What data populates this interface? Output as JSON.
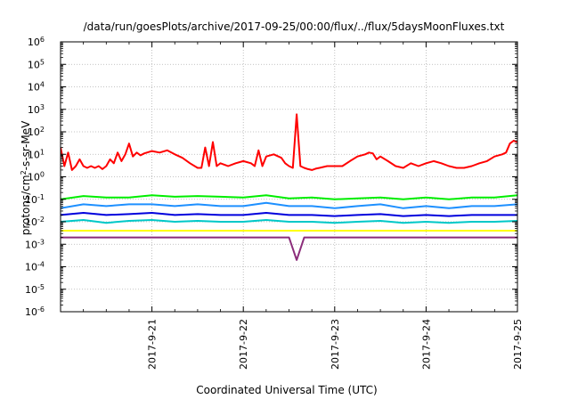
{
  "chart_data": {
    "type": "line",
    "title": "/data/run/goesPlots/archive/2017-09-25/00:00/flux/../flux/5daysMoonFluxes.txt",
    "xlabel": "Coordinated Universal Time (UTC)",
    "ylabel": {
      "base": "protons/cm",
      "sup": "2",
      "rest": "-s-sr-MeV"
    },
    "y_scale": "log",
    "ylim": [
      1e-06,
      1000000.0
    ],
    "y_ticks": [
      {
        "value": 1e-06,
        "base": "10",
        "exp": "-6"
      },
      {
        "value": 1e-05,
        "base": "10",
        "exp": "-5"
      },
      {
        "value": 0.0001,
        "base": "10",
        "exp": "-4"
      },
      {
        "value": 0.001,
        "base": "10",
        "exp": "-3"
      },
      {
        "value": 0.01,
        "base": "10",
        "exp": "-2"
      },
      {
        "value": 0.1,
        "base": "10",
        "exp": "-1"
      },
      {
        "value": 1,
        "base": "10",
        "exp": "0"
      },
      {
        "value": 10.0,
        "base": "10",
        "exp": "1"
      },
      {
        "value": 100.0,
        "base": "10",
        "exp": "2"
      },
      {
        "value": 1000.0,
        "base": "10",
        "exp": "3"
      },
      {
        "value": 10000.0,
        "base": "10",
        "exp": "4"
      },
      {
        "value": 100000.0,
        "base": "10",
        "exp": "5"
      },
      {
        "value": 1000000.0,
        "base": "10",
        "exp": "6"
      }
    ],
    "xlim": [
      "2017-09-20T00:00",
      "2017-09-25T00:00"
    ],
    "x_ticks": [
      {
        "value": "2017-09-21T00:00",
        "label": "2017-9-21"
      },
      {
        "value": "2017-09-22T00:00",
        "label": "2017-9-22"
      },
      {
        "value": "2017-09-23T00:00",
        "label": "2017-9-23"
      },
      {
        "value": "2017-09-24T00:00",
        "label": "2017-9-24"
      },
      {
        "value": "2017-09-25T00:00",
        "label": "2017-9-25"
      }
    ],
    "grid": true,
    "legend": "none",
    "series": [
      {
        "color": "#ff0000",
        "points": [
          [
            "2017-09-20T00:00",
            20
          ],
          [
            "2017-09-20T01:00",
            3
          ],
          [
            "2017-09-20T02:00",
            12
          ],
          [
            "2017-09-20T03:00",
            2
          ],
          [
            "2017-09-20T04:00",
            3
          ],
          [
            "2017-09-20T05:00",
            6
          ],
          [
            "2017-09-20T06:00",
            3
          ],
          [
            "2017-09-20T07:00",
            2.5
          ],
          [
            "2017-09-20T08:00",
            3
          ],
          [
            "2017-09-20T09:00",
            2.5
          ],
          [
            "2017-09-20T10:00",
            3
          ],
          [
            "2017-09-20T11:00",
            2.2
          ],
          [
            "2017-09-20T12:00",
            3
          ],
          [
            "2017-09-20T13:00",
            6
          ],
          [
            "2017-09-20T14:00",
            4
          ],
          [
            "2017-09-20T15:00",
            12
          ],
          [
            "2017-09-20T16:00",
            5
          ],
          [
            "2017-09-20T17:00",
            10
          ],
          [
            "2017-09-20T18:00",
            30
          ],
          [
            "2017-09-20T19:00",
            8
          ],
          [
            "2017-09-20T20:00",
            12
          ],
          [
            "2017-09-20T21:00",
            9
          ],
          [
            "2017-09-20T22:00",
            11
          ],
          [
            "2017-09-21T00:00",
            14
          ],
          [
            "2017-09-21T02:00",
            12
          ],
          [
            "2017-09-21T04:00",
            15
          ],
          [
            "2017-09-21T06:00",
            10
          ],
          [
            "2017-09-21T08:00",
            7
          ],
          [
            "2017-09-21T10:00",
            4
          ],
          [
            "2017-09-21T12:00",
            2.5
          ],
          [
            "2017-09-21T13:00",
            2.5
          ],
          [
            "2017-09-21T14:00",
            20
          ],
          [
            "2017-09-21T15:00",
            3
          ],
          [
            "2017-09-21T16:00",
            35
          ],
          [
            "2017-09-21T17:00",
            3
          ],
          [
            "2017-09-21T18:00",
            4
          ],
          [
            "2017-09-21T20:00",
            3
          ],
          [
            "2017-09-21T22:00",
            4
          ],
          [
            "2017-09-22T00:00",
            5
          ],
          [
            "2017-09-22T02:00",
            4
          ],
          [
            "2017-09-22T03:00",
            3
          ],
          [
            "2017-09-22T04:00",
            15
          ],
          [
            "2017-09-22T05:00",
            3
          ],
          [
            "2017-09-22T06:00",
            8
          ],
          [
            "2017-09-22T08:00",
            10
          ],
          [
            "2017-09-22T10:00",
            7
          ],
          [
            "2017-09-22T11:00",
            4
          ],
          [
            "2017-09-22T12:00",
            3
          ],
          [
            "2017-09-22T13:00",
            2.5
          ],
          [
            "2017-09-22T14:00",
            600
          ],
          [
            "2017-09-22T15:00",
            3
          ],
          [
            "2017-09-22T16:00",
            2.5
          ],
          [
            "2017-09-22T17:00",
            2.2
          ],
          [
            "2017-09-22T18:00",
            2
          ],
          [
            "2017-09-22T19:00",
            2.3
          ],
          [
            "2017-09-22T20:00",
            2.5
          ],
          [
            "2017-09-22T22:00",
            3
          ],
          [
            "2017-09-23T00:00",
            3
          ],
          [
            "2017-09-23T02:00",
            3
          ],
          [
            "2017-09-23T04:00",
            5
          ],
          [
            "2017-09-23T06:00",
            8
          ],
          [
            "2017-09-23T08:00",
            10
          ],
          [
            "2017-09-23T09:00",
            12
          ],
          [
            "2017-09-23T10:00",
            11
          ],
          [
            "2017-09-23T11:00",
            6
          ],
          [
            "2017-09-23T12:00",
            8
          ],
          [
            "2017-09-23T14:00",
            5
          ],
          [
            "2017-09-23T16:00",
            3
          ],
          [
            "2017-09-23T18:00",
            2.5
          ],
          [
            "2017-09-23T20:00",
            4
          ],
          [
            "2017-09-23T22:00",
            3
          ],
          [
            "2017-09-24T00:00",
            4
          ],
          [
            "2017-09-24T02:00",
            5
          ],
          [
            "2017-09-24T04:00",
            4
          ],
          [
            "2017-09-24T06:00",
            3
          ],
          [
            "2017-09-24T08:00",
            2.5
          ],
          [
            "2017-09-24T10:00",
            2.5
          ],
          [
            "2017-09-24T12:00",
            3
          ],
          [
            "2017-09-24T14:00",
            4
          ],
          [
            "2017-09-24T16:00",
            5
          ],
          [
            "2017-09-24T18:00",
            8
          ],
          [
            "2017-09-24T20:00",
            10
          ],
          [
            "2017-09-24T21:00",
            12
          ],
          [
            "2017-09-24T22:00",
            30
          ],
          [
            "2017-09-24T23:00",
            40
          ],
          [
            "2017-09-25T00:00",
            35
          ],
          [
            "2017-09-25T01:00",
            25
          ],
          [
            "2017-09-25T02:00",
            20
          ],
          [
            "2017-09-25T03:00",
            10
          ],
          [
            "2017-09-25T04:00",
            5
          ],
          [
            "2017-09-25T05:00",
            2.5
          ],
          [
            "2017-09-25T06:00",
            2.2
          ]
        ]
      },
      {
        "color": "#00ee00",
        "points": [
          [
            "2017-09-20T00:00",
            0.1
          ],
          [
            "2017-09-20T06:00",
            0.14
          ],
          [
            "2017-09-20T12:00",
            0.12
          ],
          [
            "2017-09-20T18:00",
            0.12
          ],
          [
            "2017-09-21T00:00",
            0.15
          ],
          [
            "2017-09-21T06:00",
            0.13
          ],
          [
            "2017-09-21T12:00",
            0.14
          ],
          [
            "2017-09-21T18:00",
            0.13
          ],
          [
            "2017-09-22T00:00",
            0.12
          ],
          [
            "2017-09-22T06:00",
            0.15
          ],
          [
            "2017-09-22T12:00",
            0.11
          ],
          [
            "2017-09-22T18:00",
            0.12
          ],
          [
            "2017-09-23T00:00",
            0.1
          ],
          [
            "2017-09-23T06:00",
            0.11
          ],
          [
            "2017-09-23T12:00",
            0.12
          ],
          [
            "2017-09-23T18:00",
            0.1
          ],
          [
            "2017-09-24T00:00",
            0.12
          ],
          [
            "2017-09-24T06:00",
            0.1
          ],
          [
            "2017-09-24T12:00",
            0.12
          ],
          [
            "2017-09-24T18:00",
            0.12
          ],
          [
            "2017-09-25T00:00",
            0.15
          ],
          [
            "2017-09-25T06:00",
            0.18
          ]
        ]
      },
      {
        "color": "#1e90ff",
        "points": [
          [
            "2017-09-20T00:00",
            0.04
          ],
          [
            "2017-09-20T06:00",
            0.06
          ],
          [
            "2017-09-20T12:00",
            0.05
          ],
          [
            "2017-09-20T18:00",
            0.06
          ],
          [
            "2017-09-21T00:00",
            0.06
          ],
          [
            "2017-09-21T06:00",
            0.05
          ],
          [
            "2017-09-21T12:00",
            0.06
          ],
          [
            "2017-09-21T18:00",
            0.05
          ],
          [
            "2017-09-22T00:00",
            0.05
          ],
          [
            "2017-09-22T06:00",
            0.07
          ],
          [
            "2017-09-22T12:00",
            0.05
          ],
          [
            "2017-09-22T18:00",
            0.05
          ],
          [
            "2017-09-23T00:00",
            0.04
          ],
          [
            "2017-09-23T06:00",
            0.05
          ],
          [
            "2017-09-23T12:00",
            0.06
          ],
          [
            "2017-09-23T18:00",
            0.04
          ],
          [
            "2017-09-24T00:00",
            0.05
          ],
          [
            "2017-09-24T06:00",
            0.04
          ],
          [
            "2017-09-24T12:00",
            0.05
          ],
          [
            "2017-09-24T18:00",
            0.05
          ],
          [
            "2017-09-25T00:00",
            0.06
          ],
          [
            "2017-09-25T06:00",
            0.07
          ]
        ]
      },
      {
        "color": "#0000dd",
        "points": [
          [
            "2017-09-20T00:00",
            0.02
          ],
          [
            "2017-09-20T06:00",
            0.025
          ],
          [
            "2017-09-20T12:00",
            0.02
          ],
          [
            "2017-09-20T18:00",
            0.022
          ],
          [
            "2017-09-21T00:00",
            0.025
          ],
          [
            "2017-09-21T06:00",
            0.02
          ],
          [
            "2017-09-21T12:00",
            0.022
          ],
          [
            "2017-09-21T18:00",
            0.02
          ],
          [
            "2017-09-22T00:00",
            0.02
          ],
          [
            "2017-09-22T06:00",
            0.025
          ],
          [
            "2017-09-22T12:00",
            0.02
          ],
          [
            "2017-09-22T18:00",
            0.02
          ],
          [
            "2017-09-23T00:00",
            0.018
          ],
          [
            "2017-09-23T06:00",
            0.02
          ],
          [
            "2017-09-23T12:00",
            0.022
          ],
          [
            "2017-09-23T18:00",
            0.018
          ],
          [
            "2017-09-24T00:00",
            0.02
          ],
          [
            "2017-09-24T06:00",
            0.018
          ],
          [
            "2017-09-24T12:00",
            0.02
          ],
          [
            "2017-09-24T18:00",
            0.02
          ],
          [
            "2017-09-25T00:00",
            0.02
          ],
          [
            "2017-09-25T06:00",
            0.022
          ]
        ]
      },
      {
        "color": "#00c8c8",
        "points": [
          [
            "2017-09-20T00:00",
            0.01
          ],
          [
            "2017-09-20T06:00",
            0.012
          ],
          [
            "2017-09-20T12:00",
            0.009
          ],
          [
            "2017-09-20T18:00",
            0.011
          ],
          [
            "2017-09-21T00:00",
            0.012
          ],
          [
            "2017-09-21T06:00",
            0.01
          ],
          [
            "2017-09-21T12:00",
            0.011
          ],
          [
            "2017-09-21T18:00",
            0.01
          ],
          [
            "2017-09-22T00:00",
            0.01
          ],
          [
            "2017-09-22T06:00",
            0.012
          ],
          [
            "2017-09-22T12:00",
            0.01
          ],
          [
            "2017-09-22T18:00",
            0.01
          ],
          [
            "2017-09-23T00:00",
            0.009
          ],
          [
            "2017-09-23T06:00",
            0.01
          ],
          [
            "2017-09-23T12:00",
            0.011
          ],
          [
            "2017-09-23T18:00",
            0.009
          ],
          [
            "2017-09-24T00:00",
            0.01
          ],
          [
            "2017-09-24T06:00",
            0.009
          ],
          [
            "2017-09-24T12:00",
            0.01
          ],
          [
            "2017-09-24T18:00",
            0.01
          ],
          [
            "2017-09-25T00:00",
            0.011
          ],
          [
            "2017-09-25T06:00",
            0.012
          ]
        ]
      },
      {
        "color": "#ffff00",
        "points": [
          [
            "2017-09-20T00:00",
            0.004
          ],
          [
            "2017-09-20T12:00",
            0.004
          ],
          [
            "2017-09-21T00:00",
            0.004
          ],
          [
            "2017-09-21T12:00",
            0.004
          ],
          [
            "2017-09-22T00:00",
            0.004
          ],
          [
            "2017-09-22T12:00",
            0.004
          ],
          [
            "2017-09-23T00:00",
            0.004
          ],
          [
            "2017-09-23T12:00",
            0.004
          ],
          [
            "2017-09-24T00:00",
            0.004
          ],
          [
            "2017-09-24T12:00",
            0.004
          ],
          [
            "2017-09-25T00:00",
            0.004
          ],
          [
            "2017-09-25T06:00",
            0.004
          ]
        ]
      },
      {
        "color": "#8b2c7a",
        "points": [
          [
            "2017-09-20T00:00",
            0.002
          ],
          [
            "2017-09-20T06:00",
            0.002
          ],
          [
            "2017-09-20T12:00",
            0.002
          ],
          [
            "2017-09-20T18:00",
            0.002
          ],
          [
            "2017-09-21T00:00",
            0.002
          ],
          [
            "2017-09-21T06:00",
            0.002
          ],
          [
            "2017-09-21T12:00",
            0.002
          ],
          [
            "2017-09-21T18:00",
            0.002
          ],
          [
            "2017-09-22T00:00",
            0.002
          ],
          [
            "2017-09-22T06:00",
            0.002
          ],
          [
            "2017-09-22T12:00",
            0.002
          ],
          [
            "2017-09-22T14:00",
            0.0002
          ],
          [
            "2017-09-22T16:00",
            0.002
          ],
          [
            "2017-09-22T18:00",
            0.002
          ],
          [
            "2017-09-23T00:00",
            0.002
          ],
          [
            "2017-09-23T06:00",
            0.002
          ],
          [
            "2017-09-23T12:00",
            0.002
          ],
          [
            "2017-09-23T18:00",
            0.002
          ],
          [
            "2017-09-24T00:00",
            0.002
          ],
          [
            "2017-09-24T06:00",
            0.002
          ],
          [
            "2017-09-24T12:00",
            0.002
          ],
          [
            "2017-09-24T18:00",
            0.002
          ],
          [
            "2017-09-25T00:00",
            0.002
          ],
          [
            "2017-09-25T06:00",
            0.002
          ]
        ]
      }
    ]
  }
}
